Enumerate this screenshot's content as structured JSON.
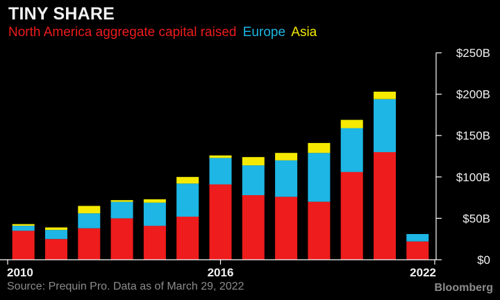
{
  "header": {
    "title": "TINY SHARE"
  },
  "legend": [
    {
      "label": "North America aggregate capital raised",
      "color": "#ee1c1c"
    },
    {
      "label": "Europe",
      "color": "#1eb6e4"
    },
    {
      "label": "Asia",
      "color": "#f5ea00"
    }
  ],
  "footer": {
    "source": "Source: Prequin Pro. Data as of March 29, 2022",
    "brand": "Bloomberg"
  },
  "chart_data": {
    "type": "bar",
    "stacked": true,
    "categories": [
      2010,
      2011,
      2012,
      2013,
      2014,
      2015,
      2016,
      2017,
      2018,
      2019,
      2020,
      2021,
      2022
    ],
    "x_tick_labels": [
      "2010",
      "2016",
      "2022"
    ],
    "series": [
      {
        "name": "North America aggregate capital raised",
        "color": "#ee1c1c",
        "values": [
          35,
          25,
          38,
          50,
          41,
          52,
          91,
          78,
          76,
          70,
          106,
          130,
          22
        ]
      },
      {
        "name": "Europe",
        "color": "#1eb6e4",
        "values": [
          6,
          11,
          18,
          20,
          28,
          40,
          32,
          36,
          44,
          59,
          53,
          64,
          9
        ]
      },
      {
        "name": "Asia",
        "color": "#f5ea00",
        "values": [
          2,
          3,
          9,
          2,
          4,
          8,
          3,
          10,
          9,
          12,
          10,
          9,
          0
        ]
      }
    ],
    "y_ticks": [
      "$0",
      "$50B",
      "$100B",
      "$150B",
      "$200B",
      "$250B"
    ],
    "ylim": [
      0,
      250
    ],
    "y_axis_side": "right",
    "grid": false
  }
}
